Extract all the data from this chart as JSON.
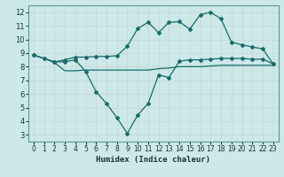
{
  "title": "",
  "xlabel": "Humidex (Indice chaleur)",
  "ylabel": "",
  "bg_color": "#cce8e8",
  "grid_color": "#aacccc",
  "line_color": "#1a6b6b",
  "xlim": [
    -0.5,
    23.5
  ],
  "ylim": [
    2.5,
    12.5
  ],
  "yticks": [
    3,
    4,
    5,
    6,
    7,
    8,
    9,
    10,
    11,
    12
  ],
  "xticks": [
    0,
    1,
    2,
    3,
    4,
    5,
    6,
    7,
    8,
    9,
    10,
    11,
    12,
    13,
    14,
    15,
    16,
    17,
    18,
    19,
    20,
    21,
    22,
    23
  ],
  "line1_x": [
    0,
    1,
    2,
    3,
    4,
    5,
    6,
    7,
    8,
    9,
    10,
    11,
    12,
    13,
    14,
    15,
    16,
    17,
    18,
    19,
    20,
    21,
    22,
    23
  ],
  "line1_y": [
    8.85,
    8.6,
    8.3,
    7.7,
    7.7,
    7.75,
    7.75,
    7.75,
    7.75,
    7.75,
    7.75,
    7.75,
    7.85,
    7.9,
    8.0,
    8.0,
    8.0,
    8.05,
    8.1,
    8.1,
    8.1,
    8.1,
    8.1,
    8.1
  ],
  "line2_x": [
    0,
    1,
    2,
    3,
    4,
    5,
    6,
    7,
    8,
    9,
    10,
    11,
    12,
    13,
    14,
    15,
    16,
    17,
    18,
    19,
    20,
    21,
    22,
    23
  ],
  "line2_y": [
    8.85,
    8.6,
    8.35,
    8.35,
    8.5,
    7.65,
    6.15,
    5.3,
    4.25,
    3.1,
    4.45,
    5.3,
    7.4,
    7.2,
    8.4,
    8.5,
    8.5,
    8.55,
    8.6,
    8.6,
    8.6,
    8.55,
    8.55,
    8.2
  ],
  "line3_x": [
    0,
    1,
    2,
    3,
    4,
    5,
    6,
    7,
    8,
    9,
    10,
    11,
    12,
    13,
    14,
    15,
    16,
    17,
    18,
    19,
    20,
    21,
    22,
    23
  ],
  "line3_y": [
    8.85,
    8.6,
    8.35,
    8.5,
    8.7,
    8.7,
    8.75,
    8.75,
    8.8,
    9.5,
    10.8,
    11.25,
    10.5,
    11.25,
    11.3,
    10.75,
    11.8,
    12.0,
    11.5,
    9.8,
    9.6,
    9.45,
    9.3,
    8.2
  ]
}
